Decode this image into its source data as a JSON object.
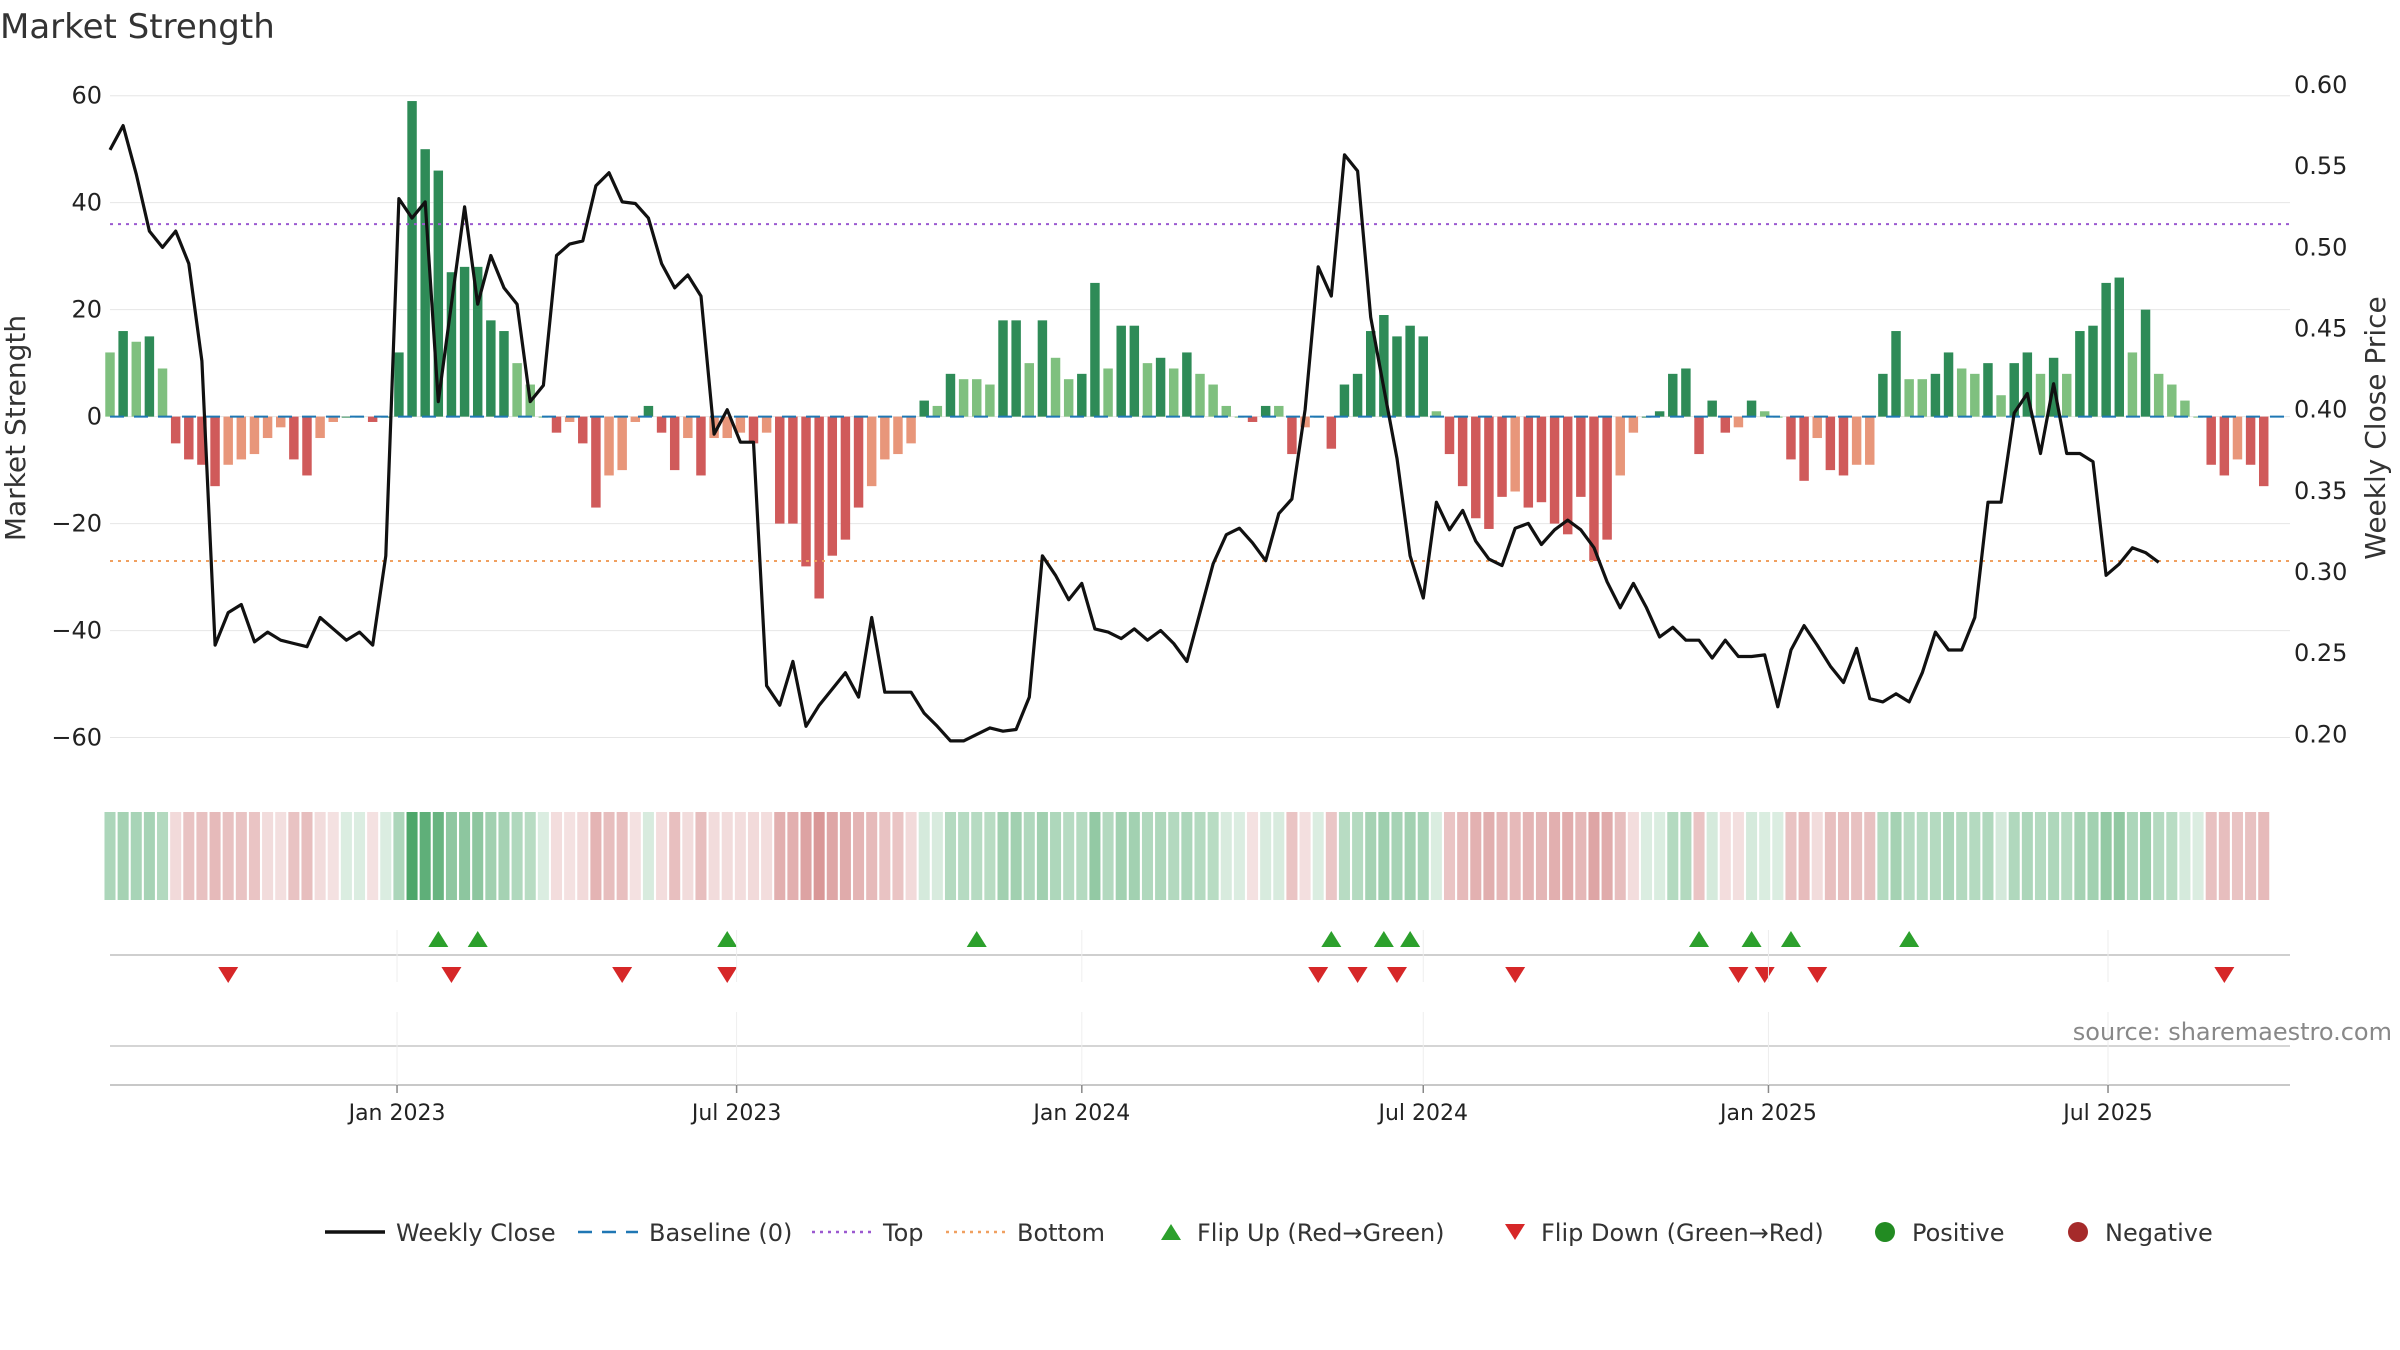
{
  "chart_data": {
    "type": "bar+line",
    "title": "Market Strength",
    "ylabel_left": "Market Strength",
    "ylabel_right": "Weekly Close Price",
    "source": "source: sharemaestro.com",
    "left_axis": {
      "range": [
        -67,
        62
      ],
      "ticks": [
        60,
        40,
        20,
        0,
        -20,
        -40,
        -60
      ],
      "tick_labels": [
        "60",
        "40",
        "20",
        "0",
        "−20",
        "−40",
        "−60"
      ]
    },
    "right_axis": {
      "range": [
        0.175,
        0.6
      ],
      "ticks": [
        0.6,
        0.55,
        0.5,
        0.45,
        0.4,
        0.35,
        0.3,
        0.25,
        0.2
      ],
      "tick_labels": [
        "0.60",
        "0.55",
        "0.50",
        "0.45",
        "0.40",
        "0.35",
        "0.30",
        "0.25",
        "0.20"
      ]
    },
    "x_range": [
      "2022-08-01",
      "2025-10-06"
    ],
    "x_ticks": [
      {
        "date": "2023-01-01",
        "label": "Jan 2023"
      },
      {
        "date": "2023-07-01",
        "label": "Jul 2023"
      },
      {
        "date": "2024-01-01",
        "label": "Jan 2024"
      },
      {
        "date": "2024-07-01",
        "label": "Jul 2024"
      },
      {
        "date": "2025-01-01",
        "label": "Jan 2025"
      },
      {
        "date": "2025-07-01",
        "label": "Jul 2025"
      }
    ],
    "top_level": 36,
    "bottom_level": -27,
    "start_date": "2022-08-01",
    "strength": [
      12,
      16,
      14,
      15,
      9,
      -5,
      -8,
      -9,
      -13,
      -9,
      -8,
      -7,
      -4,
      -2,
      -8,
      -11,
      -4,
      -1,
      0,
      0,
      -1,
      0,
      12,
      59,
      50,
      46,
      27,
      28,
      28,
      18,
      16,
      10,
      6,
      0,
      -3,
      -1,
      -5,
      -17,
      -11,
      -10,
      -1,
      2,
      -3,
      -10,
      -4,
      -11,
      -4,
      -4,
      -3,
      -5,
      -3,
      -20,
      -20,
      -28,
      -34,
      -26,
      -23,
      -17,
      -13,
      -8,
      -7,
      -5,
      3,
      2,
      8,
      7,
      7,
      6,
      18,
      18,
      10,
      18,
      11,
      7,
      8,
      25,
      9,
      17,
      17,
      10,
      11,
      9,
      12,
      8,
      6,
      2,
      0,
      -1,
      2,
      2,
      -7,
      -2,
      0,
      -6,
      6,
      8,
      16,
      19,
      15,
      17,
      15,
      1,
      -7,
      -13,
      -19,
      -21,
      -15,
      -14,
      -17,
      -16,
      -20,
      -22,
      -15,
      -27,
      -23,
      -11,
      -3,
      0,
      1,
      8,
      9,
      -7,
      3,
      -3,
      -2,
      3,
      1,
      0,
      -8,
      -12,
      -4,
      -10,
      -11,
      -9,
      -9,
      8,
      16,
      7,
      7,
      8,
      12,
      9,
      8,
      10,
      4,
      10,
      12,
      8,
      11,
      8,
      16,
      17,
      25,
      26,
      12,
      20,
      8,
      6,
      3,
      0,
      -9,
      -11,
      -8,
      -9,
      -13
    ],
    "close": [
      0.56,
      0.575,
      0.545,
      0.51,
      0.5,
      0.51,
      0.49,
      0.43,
      0.255,
      0.275,
      0.28,
      0.257,
      0.263,
      0.258,
      0.256,
      0.254,
      0.272,
      0.265,
      0.258,
      0.263,
      0.255,
      0.31,
      0.53,
      0.518,
      0.528,
      0.405,
      0.465,
      0.525,
      0.465,
      0.495,
      0.475,
      0.465,
      0.405,
      0.415,
      0.495,
      0.502,
      0.504,
      0.538,
      0.546,
      0.528,
      0.527,
      0.518,
      0.49,
      0.475,
      0.483,
      0.47,
      0.385,
      0.4,
      0.38,
      0.38,
      0.23,
      0.218,
      0.245,
      0.205,
      0.218,
      0.228,
      0.238,
      0.223,
      0.272,
      0.226,
      0.226,
      0.226,
      0.213,
      0.205,
      0.196,
      0.196,
      0.2,
      0.204,
      0.202,
      0.203,
      0.223,
      0.31,
      0.298,
      0.283,
      0.293,
      0.265,
      0.263,
      0.259,
      0.265,
      0.258,
      0.264,
      0.256,
      0.245,
      0.275,
      0.305,
      0.323,
      0.327,
      0.318,
      0.307,
      0.336,
      0.345,
      0.4,
      0.488,
      0.47,
      0.557,
      0.547,
      0.457,
      0.413,
      0.37,
      0.31,
      0.284,
      0.343,
      0.326,
      0.338,
      0.319,
      0.308,
      0.304,
      0.327,
      0.33,
      0.317,
      0.326,
      0.332,
      0.326,
      0.315,
      0.294,
      0.278,
      0.293,
      0.278,
      0.26,
      0.266,
      0.258,
      0.258,
      0.247,
      0.258,
      0.248,
      0.248,
      0.249,
      0.217,
      0.252,
      0.267,
      0.255,
      0.242,
      0.232,
      0.253,
      0.222,
      0.22,
      0.225,
      0.22,
      0.238,
      0.263,
      0.252,
      0.252,
      0.272,
      0.343,
      0.343,
      0.398,
      0.41,
      0.373,
      0.416,
      0.373,
      0.373,
      0.368,
      0.298,
      0.305,
      0.315,
      0.312,
      0.306
    ],
    "flip_up_dates": [
      "2023-01-23",
      "2023-02-13",
      "2023-06-26",
      "2023-11-06",
      "2024-05-13",
      "2024-06-10",
      "2024-06-24",
      "2024-11-25",
      "2024-12-23",
      "2025-01-13",
      "2025-03-17"
    ],
    "flip_down_dates": [
      "2022-10-03",
      "2023-01-30",
      "2023-05-01",
      "2023-06-26",
      "2024-05-06",
      "2024-05-27",
      "2024-06-17",
      "2024-08-19",
      "2024-12-16",
      "2024-12-30",
      "2025-01-27",
      "2025-09-01"
    ],
    "legend": [
      {
        "label": "Weekly Close",
        "kind": "line",
        "color": "#111111"
      },
      {
        "label": "Baseline (0)",
        "kind": "dash",
        "color": "#1f77b4"
      },
      {
        "label": "Top",
        "kind": "dot",
        "color": "#9b59d0"
      },
      {
        "label": "Bottom",
        "kind": "dot",
        "color": "#f0a060"
      },
      {
        "label": "Flip Up (Red→Green)",
        "kind": "triangle-up",
        "color": "#2ca02c"
      },
      {
        "label": "Flip Down (Green→Red)",
        "kind": "triangle-down",
        "color": "#d62728"
      },
      {
        "label": "Positive",
        "kind": "circle",
        "color": "#228b22"
      },
      {
        "label": "Negative",
        "kind": "circle",
        "color": "#a52a2a"
      }
    ],
    "colors": {
      "pos_strong": "#2e8b57",
      "pos_light": "#7fc07f",
      "neg_strong": "#d05a5a",
      "neg_light": "#e8967a",
      "line": "#111111",
      "baseline": "#1f77b4",
      "top": "#9b59d0",
      "bottom": "#f0a060",
      "flip_up": "#2ca02c",
      "flip_down": "#d62728"
    }
  }
}
